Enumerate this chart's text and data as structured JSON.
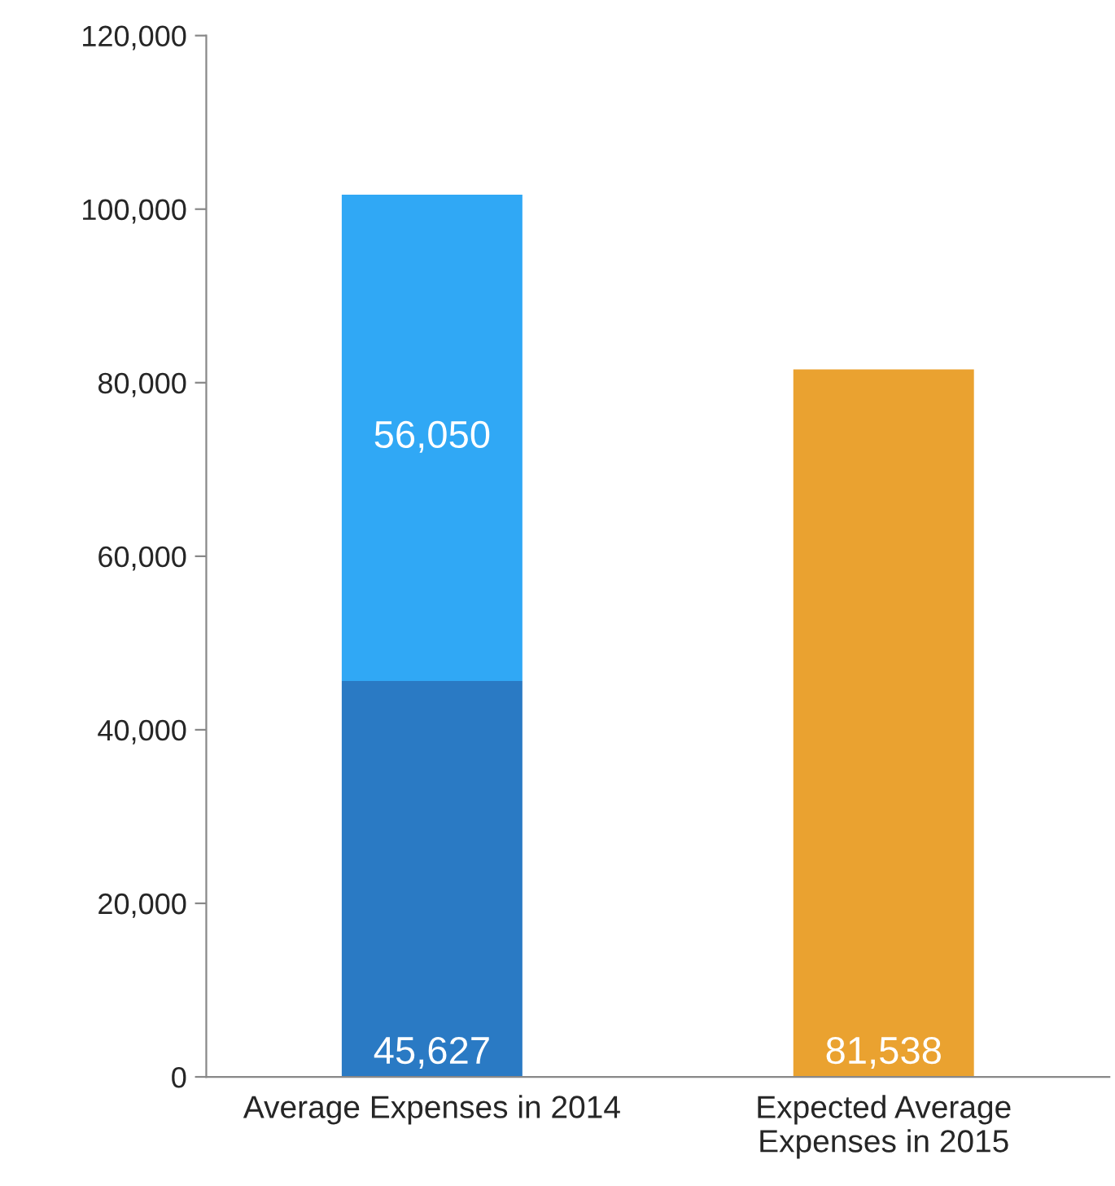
{
  "chart_data": {
    "type": "bar",
    "stacked": true,
    "categories": [
      "Average Expenses in 2014",
      "Expected Average\nExpenses in 2015"
    ],
    "series": [
      {
        "colors": [
          "#2a7ac4",
          "#eaa230"
        ],
        "values": [
          45627,
          81538
        ],
        "value_labels": [
          "45,627",
          "81,538"
        ]
      },
      {
        "color": "#30a8f5",
        "values": [
          56050,
          null
        ],
        "value_labels": [
          "56,050",
          null
        ]
      }
    ],
    "ylim": [
      0,
      120000
    ],
    "yticks": [
      {
        "value": 0,
        "label": "0"
      },
      {
        "value": 20000,
        "label": "20,000"
      },
      {
        "value": 40000,
        "label": "40,000"
      },
      {
        "value": 60000,
        "label": "60,000"
      },
      {
        "value": 80000,
        "label": "80,000"
      },
      {
        "value": 100000,
        "label": "100,000"
      },
      {
        "value": 120000,
        "label": "120,000"
      }
    ],
    "grid": false,
    "legend": false
  }
}
